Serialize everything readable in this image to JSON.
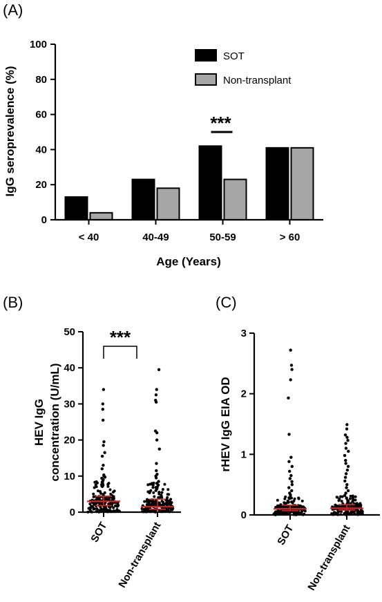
{
  "chart_data": [
    {
      "panel": "(A)",
      "type": "bar",
      "xlabel": "Age (Years)",
      "ylabel": "IgG seroprevalence (%)",
      "ylim": [
        0,
        100
      ],
      "yticks": [
        0,
        20,
        40,
        60,
        80,
        100
      ],
      "categories": [
        "< 40",
        "40-49",
        "50-59",
        "> 60"
      ],
      "series": [
        {
          "name": "SOT",
          "color": "#000000",
          "values": [
            13,
            23,
            42,
            41
          ]
        },
        {
          "name": "Non-transplant",
          "color": "#a6a6a6",
          "values": [
            4,
            18,
            23,
            41
          ]
        }
      ],
      "legend_position": "top-right",
      "annotations": [
        {
          "text": "***",
          "category": "50-59"
        }
      ]
    },
    {
      "panel": "(B)",
      "type": "scatter",
      "ylabel_lines": [
        "HEV IgG",
        "concentration (U/mL)"
      ],
      "ylim": [
        0,
        50
      ],
      "yticks": [
        0,
        10,
        20,
        30,
        40,
        50
      ],
      "categories": [
        "SOT",
        "Non-transplant"
      ],
      "median_color": "#d62728",
      "medians": [
        3,
        1.5
      ],
      "iqr": [
        [
          1.8,
          4.4
        ],
        [
          0.8,
          3.6
        ]
      ],
      "outliers": [
        [
          34,
          30,
          28.5,
          25.5,
          19.5,
          18.5,
          16.5,
          15.5,
          13,
          12,
          10.3,
          10,
          9.7,
          9.4,
          9,
          8.7,
          8.3,
          8,
          7.6,
          7.2
        ],
        [
          39.5,
          34,
          32.5,
          31,
          30.5,
          22.5,
          22,
          20,
          17.5,
          13.5,
          11.5,
          10.5,
          10,
          9.5,
          8.5,
          8,
          7.5,
          7,
          6.5,
          6,
          5.5
        ]
      ],
      "annotations": [
        {
          "text": "***",
          "between": [
            "SOT",
            "Non-transplant"
          ]
        }
      ]
    },
    {
      "panel": "(C)",
      "type": "scatter",
      "ylabel": "rHEV IgG EIA OD",
      "ylim": [
        0,
        3
      ],
      "yticks": [
        0,
        1,
        2,
        3
      ],
      "categories": [
        "SOT",
        "Non-transplant"
      ],
      "median_color": "#d62728",
      "medians": [
        0.1,
        0.11
      ],
      "iqr": [
        [
          0.07,
          0.16
        ],
        [
          0.08,
          0.17
        ]
      ],
      "outliers": [
        [
          2.72,
          2.47,
          2.4,
          2.23,
          1.93,
          1.33,
          0.95,
          0.88,
          0.8,
          0.72,
          0.65,
          0.6,
          0.55,
          0.5,
          0.45,
          0.4,
          0.36,
          0.33,
          0.3,
          0.27
        ],
        [
          1.49,
          1.42,
          1.32,
          1.28,
          1.23,
          1.18,
          1.1,
          1.05,
          0.98,
          0.9,
          0.85,
          0.8,
          0.74,
          0.68,
          0.62,
          0.56,
          0.5,
          0.45,
          0.4,
          0.36,
          0.32,
          0.28
        ]
      ]
    }
  ]
}
